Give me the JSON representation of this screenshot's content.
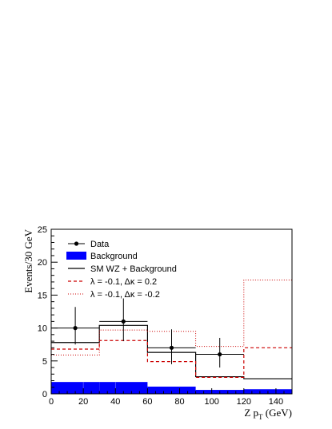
{
  "chart_data": {
    "type": "histogram",
    "x_edges": [
      0,
      30,
      60,
      90,
      120,
      150
    ],
    "xlim": [
      0,
      150
    ],
    "ylim": [
      0,
      25
    ],
    "x_ticks": [
      0,
      20,
      40,
      60,
      80,
      100,
      120,
      140
    ],
    "y_ticks": [
      0,
      5,
      10,
      15,
      20,
      25
    ],
    "xlabel": "Z p",
    "xlabel_sub": "T",
    "xlabel_unit": " (GeV)",
    "ylabel": "Events/30 GeV",
    "grid": false,
    "legend_position": "top-left",
    "data_points": {
      "name": "Data",
      "x": [
        15,
        45,
        75,
        105
      ],
      "y": [
        10,
        11,
        7,
        6
      ],
      "err_low": [
        2.5,
        3.0,
        2.5,
        2.0
      ],
      "err_high": [
        3.2,
        3.5,
        2.8,
        2.5
      ]
    },
    "series": [
      {
        "name": "Background",
        "style": "filled",
        "color": "#0000ff",
        "values": [
          1.8,
          1.8,
          1.1,
          0.6,
          0.7
        ]
      },
      {
        "name": "SM WZ + Background",
        "style": "solid",
        "color": "#000000",
        "values": [
          7.8,
          10.4,
          6.3,
          2.6,
          2.3
        ]
      },
      {
        "name": "λ = -0.1, Δκ =  0.2",
        "style": "dashed",
        "color": "#cc0000",
        "values": [
          6.8,
          8.1,
          4.9,
          2.5,
          7.0
        ]
      },
      {
        "name": "λ = -0.1, Δκ = -0.2",
        "style": "dotted",
        "color": "#cc0000",
        "values": [
          5.9,
          9.7,
          9.5,
          7.2,
          17.3
        ]
      }
    ]
  }
}
